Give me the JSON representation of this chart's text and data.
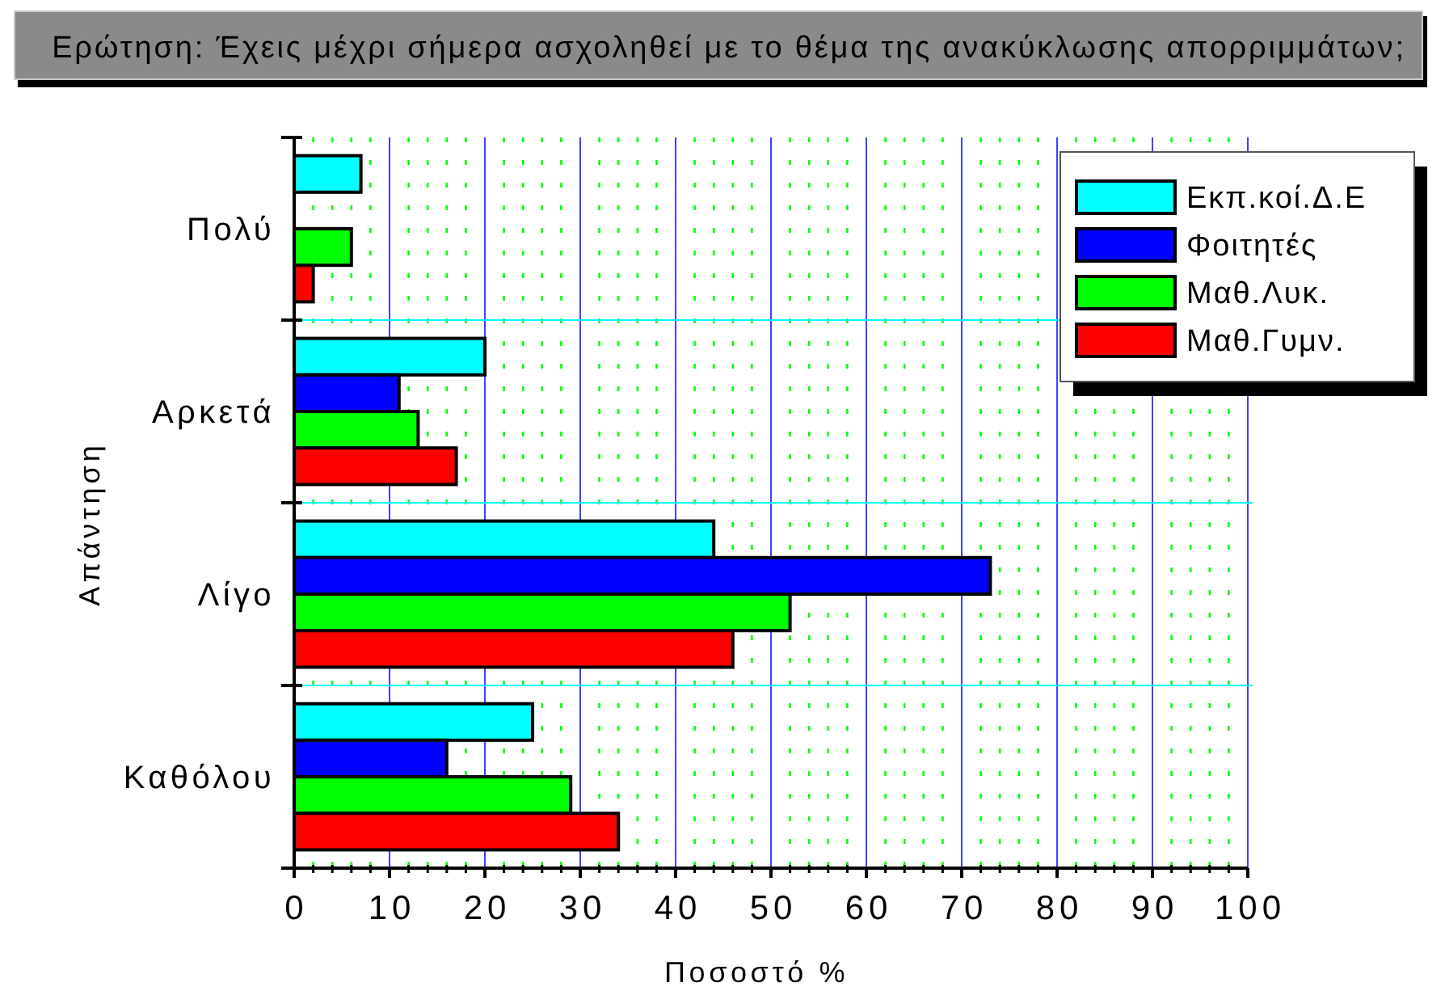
{
  "chart_data": {
    "type": "bar",
    "orientation": "horizontal",
    "title": "Ερώτηση: Έχεις μέχρι σήμερα ασχοληθεί με το θέμα της ανακύκλωσης απορριμμάτων;",
    "xlabel": "Ποσοστό %",
    "ylabel": "Απάντηση",
    "categories": [
      "Πολύ",
      "Αρκετά",
      "Λίγο",
      "Καθόλου"
    ],
    "series": [
      {
        "name": "Εκπ.κοί.Δ.Ε",
        "color": "#00ffff",
        "values": [
          7,
          20,
          44,
          25
        ]
      },
      {
        "name": "Φοιτητές",
        "color": "#0000ff",
        "values": [
          null,
          11,
          73,
          16
        ]
      },
      {
        "name": "Μαθ.Λυκ.",
        "color": "#00ff00",
        "values": [
          6,
          13,
          52,
          29
        ]
      },
      {
        "name": "Μαθ.Γυμν.",
        "color": "#ff0000",
        "values": [
          2,
          17,
          46,
          34
        ]
      }
    ],
    "xlim": [
      0,
      100
    ],
    "xticks": [
      0,
      {
        "value": 2,
        "label": null
      },
      {
        "value": 4,
        "label": null
      },
      {
        "value": 6,
        "label": null
      },
      {
        "value": 8,
        "label": null
      },
      10,
      {
        "value": 12,
        "label": null
      },
      {
        "value": 14,
        "label": null
      },
      {
        "value": 16,
        "label": null
      },
      {
        "value": 18,
        "label": null
      },
      20,
      {
        "value": 22,
        "label": null
      },
      {
        "value": 24,
        "label": null
      },
      {
        "value": 26,
        "label": null
      },
      {
        "value": 28,
        "label": null
      },
      30,
      {
        "value": 32,
        "label": null
      },
      {
        "value": 34,
        "label": null
      },
      {
        "value": 36,
        "label": null
      },
      {
        "value": 38,
        "label": null
      },
      40,
      {
        "value": 42,
        "label": null
      },
      {
        "value": 44,
        "label": null
      },
      {
        "value": 46,
        "label": null
      },
      {
        "value": 48,
        "label": null
      },
      50,
      {
        "value": 52,
        "label": null
      },
      {
        "value": 54,
        "label": null
      },
      {
        "value": 56,
        "label": null
      },
      {
        "value": 58,
        "label": null
      },
      60,
      {
        "value": 62,
        "label": null
      },
      {
        "value": 64,
        "label": null
      },
      {
        "value": 66,
        "label": null
      },
      {
        "value": 68,
        "label": null
      },
      70,
      {
        "value": 72,
        "label": null
      },
      {
        "value": 74,
        "label": null
      },
      {
        "value": 76,
        "label": null
      },
      {
        "value": 78,
        "label": null
      },
      80,
      {
        "value": 82,
        "label": null
      },
      {
        "value": 84,
        "label": null
      },
      {
        "value": 86,
        "label": null
      },
      {
        "value": 88,
        "label": null
      },
      90,
      {
        "value": 92,
        "label": null
      },
      {
        "value": 94,
        "label": null
      },
      {
        "value": 96,
        "label": null
      },
      {
        "value": 98,
        "label": null
      },
      100
    ],
    "grid": true,
    "legend": "top right"
  }
}
